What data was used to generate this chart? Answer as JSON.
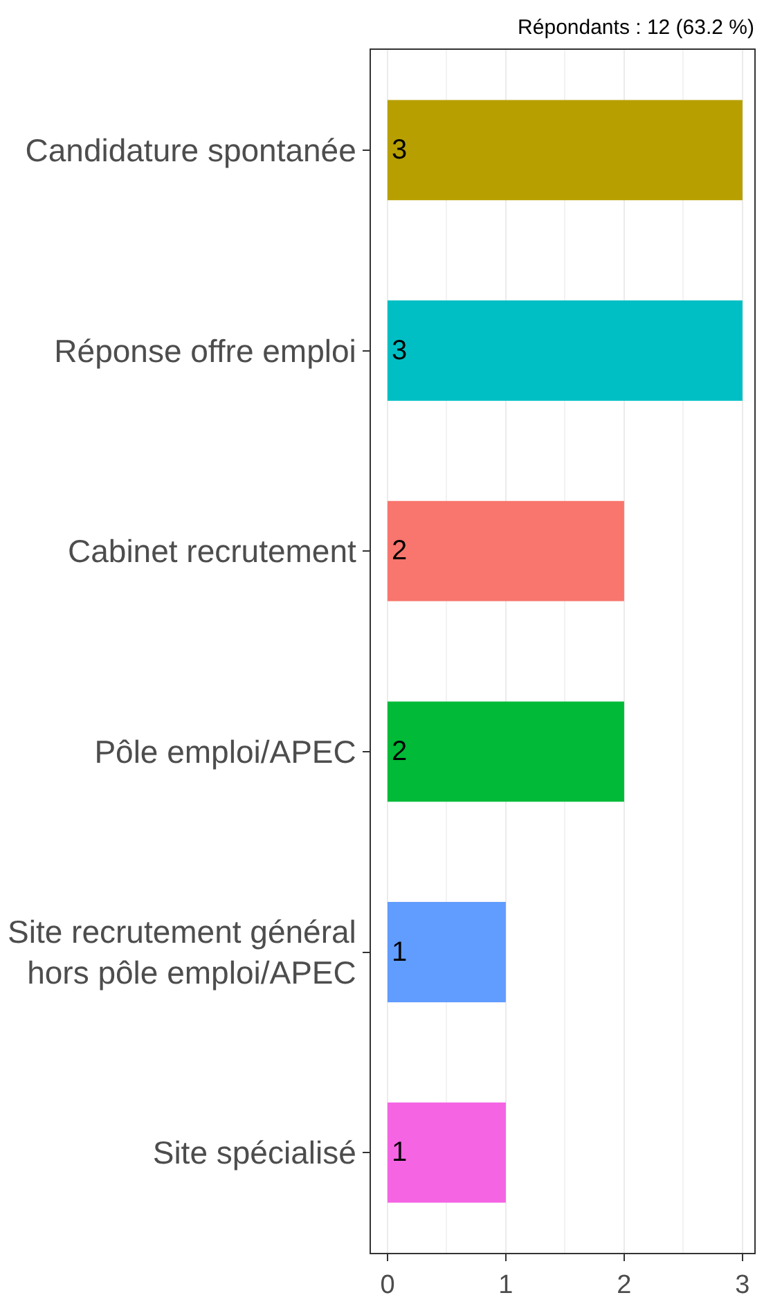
{
  "chart_data": {
    "type": "bar",
    "orientation": "horizontal",
    "title": "Répondants : 12 (63.2 %)",
    "categories": [
      "Candidature spontanée",
      "Réponse offre emploi",
      "Cabinet recrutement",
      "Pôle emploi/APEC",
      "Site recrutement général\nhors pôle emploi/APEC",
      "Site spécialisé"
    ],
    "values": [
      3,
      3,
      2,
      2,
      1,
      1
    ],
    "colors": [
      "#b79f00",
      "#00bfc4",
      "#f8766d",
      "#00ba38",
      "#619cff",
      "#f564e3"
    ],
    "xlim": [
      -0.14,
      3.1
    ],
    "xticks": [
      0,
      1,
      2,
      3
    ],
    "grid": "x",
    "data_labels": true,
    "legend": false
  }
}
